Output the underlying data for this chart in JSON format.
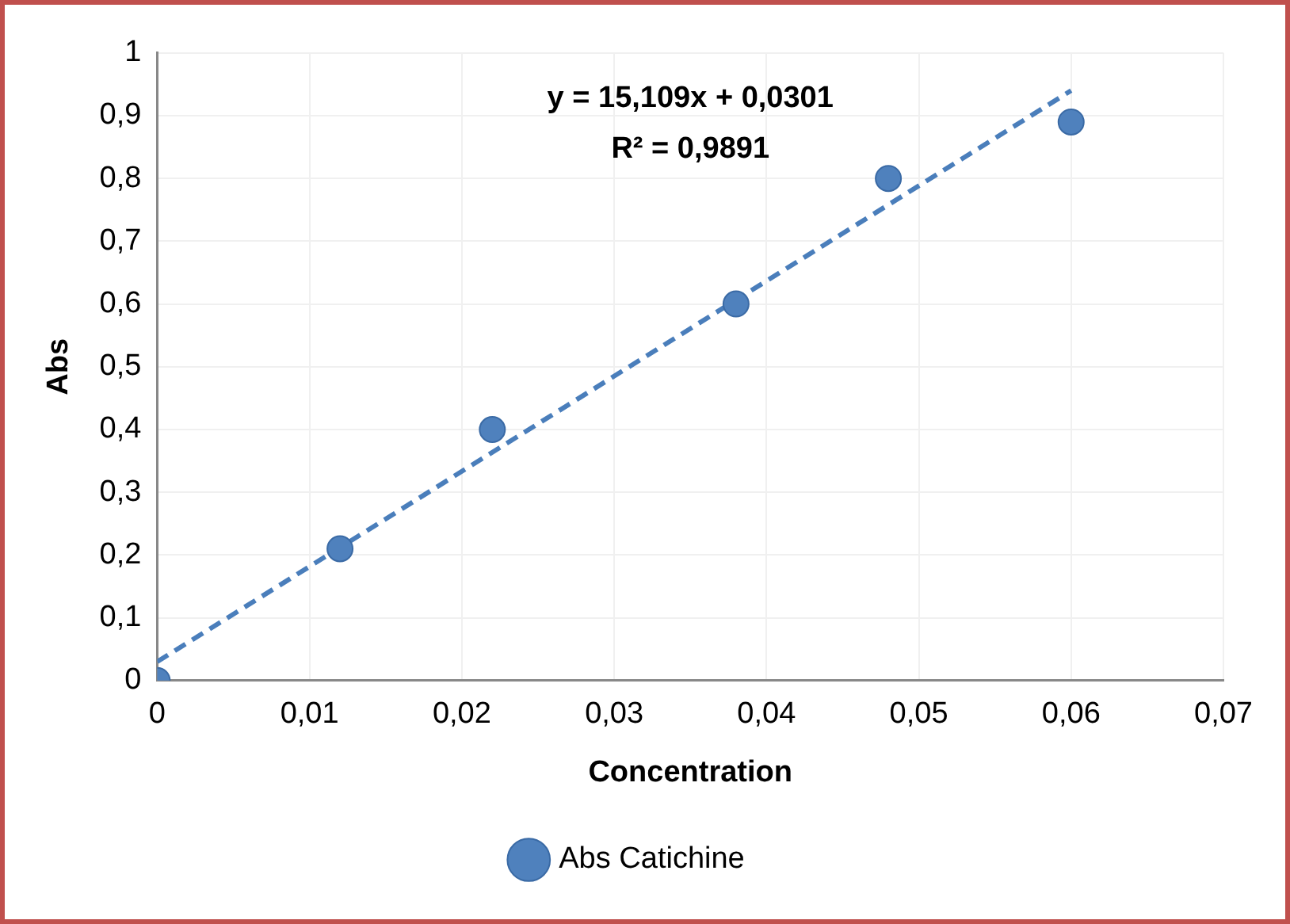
{
  "chart_data": {
    "type": "scatter",
    "xlabel": "Concentration",
    "ylabel": "Abs",
    "x": [
      0,
      0.012,
      0.022,
      0.038,
      0.048,
      0.06
    ],
    "series": [
      {
        "name": "Abs Catichine",
        "color": "#4f81bd",
        "values": [
          0,
          0.21,
          0.4,
          0.6,
          0.8,
          0.89
        ],
        "marker": "circle"
      },
      {
        "type": "line",
        "x": [
          0,
          0.06
        ],
        "values": [
          0.03,
          0.94
        ],
        "color": "#4a7ebb",
        "line_style": "dashed",
        "marker": "none"
      }
    ],
    "annotations": [
      "y = 15,109x + 0,0301",
      "R² = 0,9891"
    ],
    "xlim": [
      0,
      0.07
    ],
    "xticks": [
      0,
      {
        "value": 0.01,
        "label": "0,01"
      },
      {
        "value": 0.02,
        "label": "0,02"
      },
      {
        "value": 0.03,
        "label": "0,03"
      },
      {
        "value": 0.04,
        "label": "0,04"
      },
      {
        "value": 0.05,
        "label": "0,05"
      },
      {
        "value": 0.06,
        "label": "0,06"
      },
      {
        "value": 0.07,
        "label": "0,07"
      }
    ],
    "ylim": [
      0,
      1
    ],
    "yticks": [
      0,
      {
        "value": 0.1,
        "label": "0,1"
      },
      {
        "value": 0.2,
        "label": "0,2"
      },
      {
        "value": 0.3,
        "label": "0,3"
      },
      {
        "value": 0.4,
        "label": "0,4"
      },
      {
        "value": 0.5,
        "label": "0,5"
      },
      {
        "value": 0.6,
        "label": "0,6"
      },
      {
        "value": 0.7,
        "label": "0,7"
      },
      {
        "value": 0.8,
        "label": "0,8"
      },
      {
        "value": 0.9,
        "label": "0,9"
      },
      1
    ],
    "grid": true,
    "legend": "bottom"
  }
}
